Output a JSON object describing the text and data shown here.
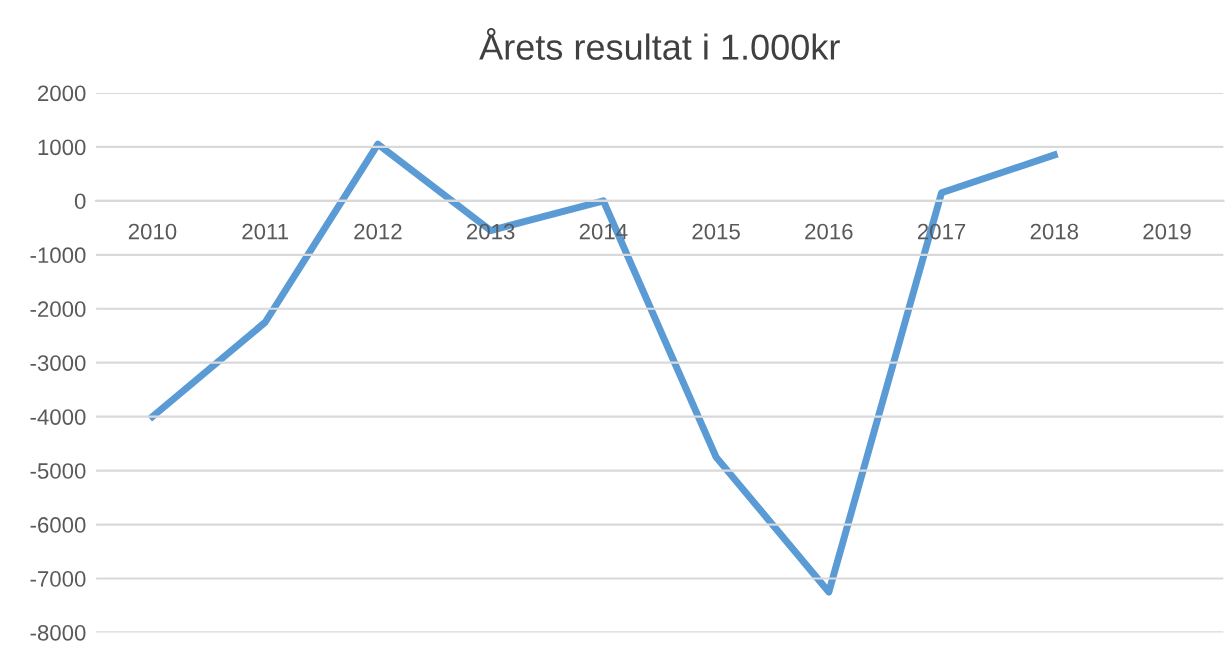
{
  "chart_data": {
    "type": "line",
    "title": "Årets resultat i 1.000kr",
    "categories": [
      "2010",
      "2011",
      "2012",
      "2013",
      "2014",
      "2015",
      "2016",
      "2017",
      "2018",
      "2019"
    ],
    "series": [
      {
        "color": "#5b9bd5",
        "values": [
          -4000,
          -2250,
          1050,
          -550,
          0,
          -4750,
          -7250,
          150,
          850,
          null
        ]
      }
    ],
    "ylim": [
      -8000,
      2000
    ],
    "yticks": [
      -8000,
      -7000,
      -6000,
      -5000,
      -4000,
      -3000,
      -2000,
      -1000,
      0,
      1000,
      2000
    ],
    "grid": "y",
    "marker": "none",
    "line_style": "solid"
  }
}
